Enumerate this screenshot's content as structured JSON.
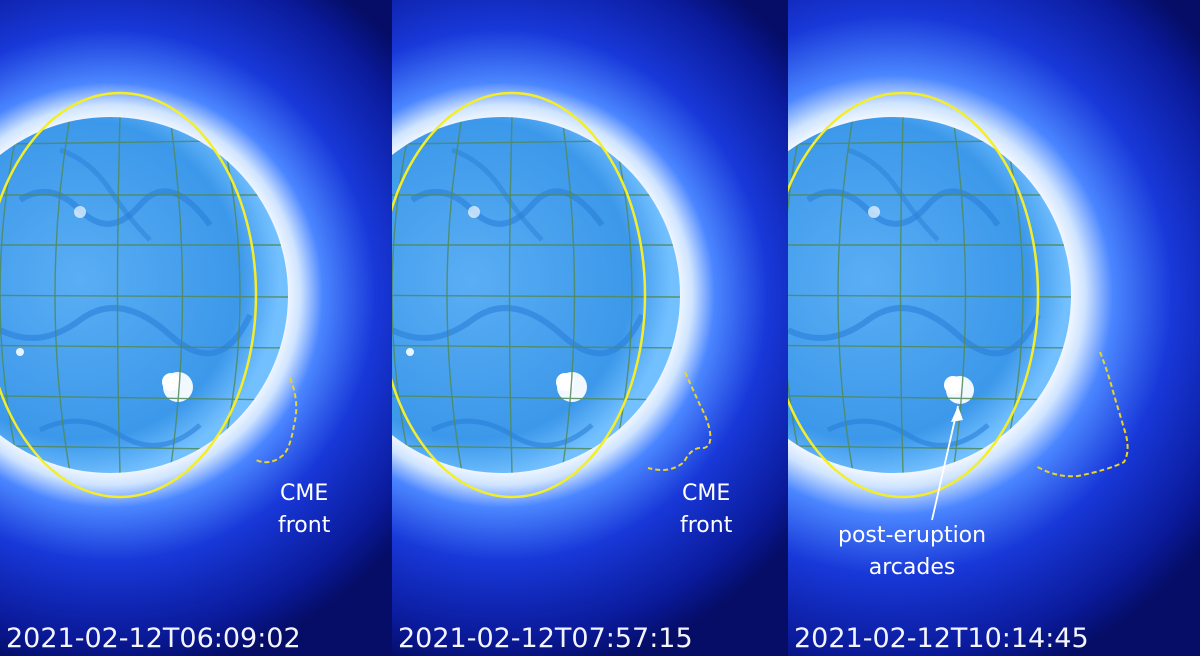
{
  "panels": [
    {
      "timestamp": "2021-02-12T06:09:02",
      "annotation": {
        "line1": "CME",
        "line2": "front"
      }
    },
    {
      "timestamp": "2021-02-12T07:57:15",
      "annotation": {
        "line1": "CME",
        "line2": "front"
      }
    },
    {
      "timestamp": "2021-02-12T10:14:45",
      "annotation": {
        "line1": "",
        "line2": ""
      },
      "arcade_annotation": {
        "line1": "post-eruption",
        "line2": "arcades"
      }
    }
  ],
  "colors": {
    "background": "#000a50",
    "corona": "#3f7dff",
    "disk": "#3aa0ee",
    "limb_line": "#f4ee2a",
    "cme_front": "#e8d42a",
    "text": "#ffffff"
  }
}
